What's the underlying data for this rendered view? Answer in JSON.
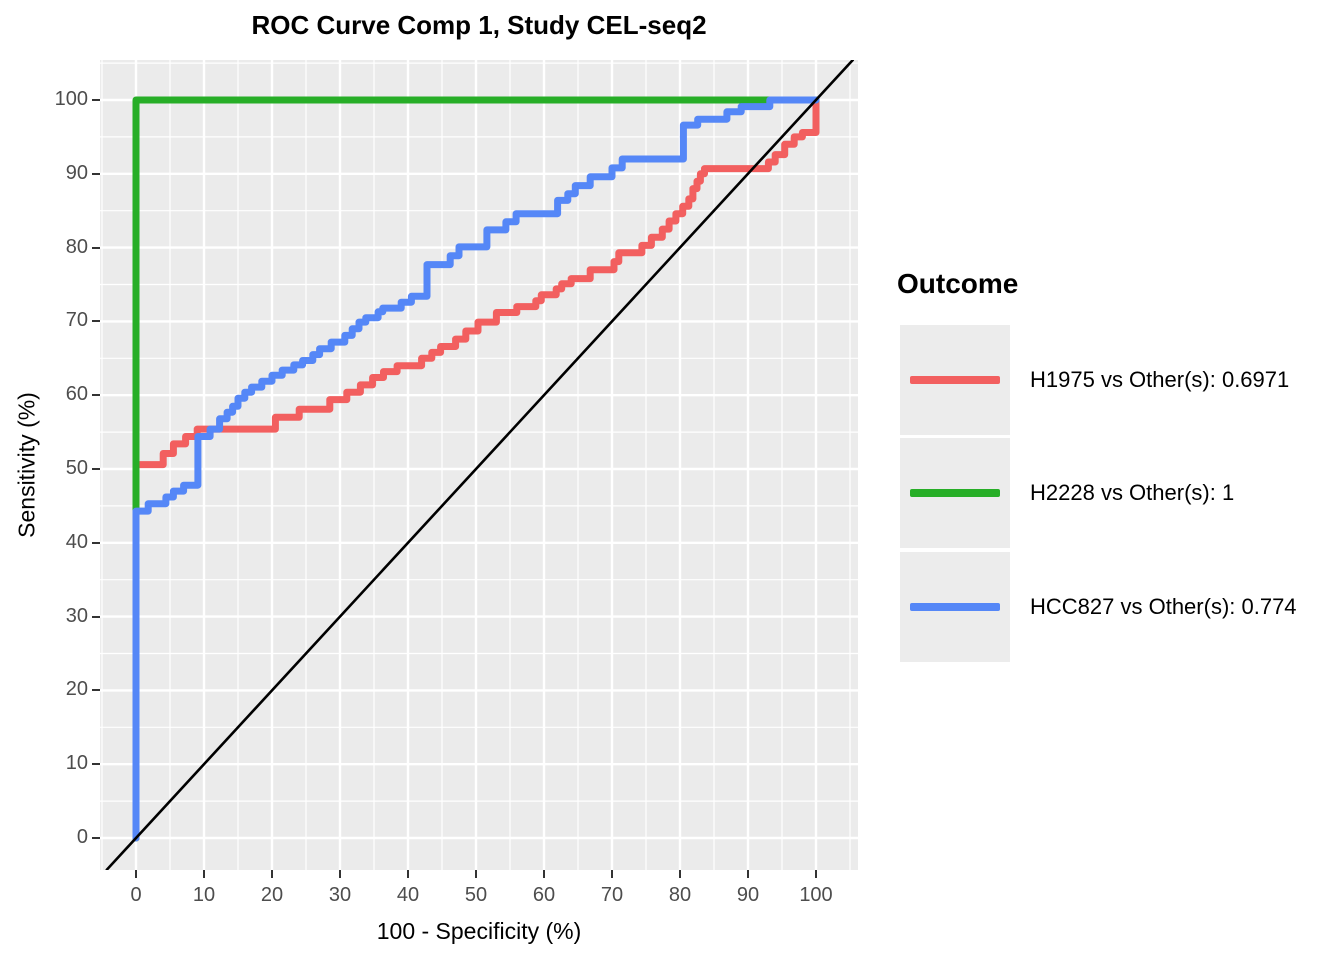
{
  "chart_data": {
    "type": "line",
    "subtype": "roc-step-curves",
    "title": "ROC Curve Comp 1, Study CEL-seq2",
    "xlabel": "100 - Specificity (%)",
    "ylabel": "Sensitivity (%)",
    "xlim": [
      -5.3,
      105.5
    ],
    "ylim": [
      -4.3,
      105.4
    ],
    "x_ticks": [
      0,
      10,
      20,
      30,
      40,
      50,
      60,
      70,
      80,
      90,
      100
    ],
    "y_ticks": [
      0,
      10,
      20,
      30,
      40,
      50,
      60,
      70,
      80,
      90,
      100
    ],
    "x_minor": [
      -5,
      5,
      15,
      25,
      35,
      45,
      55,
      65,
      75,
      85,
      95,
      105
    ],
    "y_minor": [
      5,
      15,
      25,
      35,
      45,
      55,
      65,
      75,
      85,
      95,
      105
    ],
    "grid": "on",
    "panel_bg": "#EBEBEB",
    "grid_color": "#FFFFFF",
    "legend_title": "Outcome",
    "legend_position": "right",
    "series": [
      {
        "name": "H1975",
        "label": "H1975 vs Other(s): 0.6971",
        "auc": 0.6971,
        "color": "#F25F5F",
        "points": [
          [
            0,
            0
          ],
          [
            0,
            50.6
          ],
          [
            4,
            50.6
          ],
          [
            4,
            52.1
          ],
          [
            5.5,
            52.1
          ],
          [
            5.5,
            53.4
          ],
          [
            7.3,
            53.4
          ],
          [
            7.3,
            54.4
          ],
          [
            9,
            54.4
          ],
          [
            9,
            55.4
          ],
          [
            20.5,
            55.4
          ],
          [
            20.5,
            57
          ],
          [
            24,
            57
          ],
          [
            24,
            58.1
          ],
          [
            28.5,
            58.1
          ],
          [
            28.5,
            59.4
          ],
          [
            31,
            59.4
          ],
          [
            31,
            60.4
          ],
          [
            33,
            60.4
          ],
          [
            33,
            61.4
          ],
          [
            34.8,
            61.4
          ],
          [
            34.8,
            62.4
          ],
          [
            36.4,
            62.4
          ],
          [
            36.4,
            63.2
          ],
          [
            38.4,
            63.2
          ],
          [
            38.4,
            64
          ],
          [
            42,
            64
          ],
          [
            42,
            65
          ],
          [
            43.5,
            65
          ],
          [
            43.5,
            65.8
          ],
          [
            44.8,
            65.8
          ],
          [
            44.8,
            66.6
          ],
          [
            47,
            66.6
          ],
          [
            47,
            67.6
          ],
          [
            48.5,
            67.6
          ],
          [
            48.5,
            68.7
          ],
          [
            50.3,
            68.7
          ],
          [
            50.3,
            69.9
          ],
          [
            53,
            69.9
          ],
          [
            53,
            71.2
          ],
          [
            56,
            71.2
          ],
          [
            56,
            72
          ],
          [
            58.8,
            72
          ],
          [
            58.8,
            72.8
          ],
          [
            59.6,
            72.8
          ],
          [
            59.6,
            73.6
          ],
          [
            61.8,
            73.6
          ],
          [
            61.8,
            74.4
          ],
          [
            62.6,
            74.4
          ],
          [
            62.6,
            75.1
          ],
          [
            64,
            75.1
          ],
          [
            64,
            75.8
          ],
          [
            66.8,
            75.8
          ],
          [
            66.8,
            77
          ],
          [
            70.3,
            77
          ],
          [
            70.3,
            78.1
          ],
          [
            71,
            78.1
          ],
          [
            71,
            79.3
          ],
          [
            74.4,
            79.3
          ],
          [
            74.4,
            80.3
          ],
          [
            75.8,
            80.3
          ],
          [
            75.8,
            81.4
          ],
          [
            77.4,
            81.4
          ],
          [
            77.4,
            82.5
          ],
          [
            78.4,
            82.5
          ],
          [
            78.4,
            83.6
          ],
          [
            79.4,
            83.6
          ],
          [
            79.4,
            84.6
          ],
          [
            80.4,
            84.6
          ],
          [
            80.4,
            85.6
          ],
          [
            81.3,
            85.6
          ],
          [
            81.3,
            86.6
          ],
          [
            81.9,
            86.6
          ],
          [
            81.9,
            88
          ],
          [
            82.5,
            88
          ],
          [
            82.5,
            89
          ],
          [
            83,
            89
          ],
          [
            83,
            90
          ],
          [
            83.6,
            90
          ],
          [
            83.6,
            90.7
          ],
          [
            93,
            90.7
          ],
          [
            93,
            91.6
          ],
          [
            94,
            91.6
          ],
          [
            94,
            92.6
          ],
          [
            95.4,
            92.6
          ],
          [
            95.4,
            94
          ],
          [
            96.8,
            94
          ],
          [
            96.8,
            95
          ],
          [
            98,
            95
          ],
          [
            98,
            95.6
          ],
          [
            100,
            95.6
          ],
          [
            100,
            100
          ]
        ]
      },
      {
        "name": "H2228",
        "label": "H2228 vs Other(s): 1",
        "auc": 1,
        "color": "#27AE27",
        "points": [
          [
            0,
            0
          ],
          [
            0,
            100
          ],
          [
            100,
            100
          ]
        ]
      },
      {
        "name": "HCC827",
        "label": "HCC827 vs Other(s): 0.774",
        "auc": 0.774,
        "color": "#5587F7",
        "points": [
          [
            0,
            0
          ],
          [
            0,
            44.3
          ],
          [
            1.8,
            44.3
          ],
          [
            1.8,
            45.3
          ],
          [
            4.4,
            45.3
          ],
          [
            4.4,
            46.2
          ],
          [
            5.5,
            46.2
          ],
          [
            5.5,
            47
          ],
          [
            7,
            47
          ],
          [
            7,
            47.8
          ],
          [
            9.1,
            47.8
          ],
          [
            9.1,
            54.4
          ],
          [
            10.9,
            54.4
          ],
          [
            10.9,
            55.4
          ],
          [
            12.3,
            55.4
          ],
          [
            12.3,
            56.8
          ],
          [
            13.4,
            56.8
          ],
          [
            13.4,
            57.7
          ],
          [
            14.2,
            57.7
          ],
          [
            14.2,
            58.5
          ],
          [
            15,
            58.5
          ],
          [
            15,
            59.6
          ],
          [
            16,
            59.6
          ],
          [
            16,
            60.4
          ],
          [
            17,
            60.4
          ],
          [
            17,
            61.1
          ],
          [
            18.5,
            61.1
          ],
          [
            18.5,
            61.9
          ],
          [
            20,
            61.9
          ],
          [
            20,
            62.7
          ],
          [
            21.5,
            62.7
          ],
          [
            21.5,
            63.4
          ],
          [
            23.2,
            63.4
          ],
          [
            23.2,
            64.1
          ],
          [
            24.5,
            64.1
          ],
          [
            24.5,
            64.7
          ],
          [
            26,
            64.7
          ],
          [
            26,
            65.5
          ],
          [
            27,
            65.5
          ],
          [
            27,
            66.3
          ],
          [
            28.7,
            66.3
          ],
          [
            28.7,
            67.2
          ],
          [
            30.7,
            67.2
          ],
          [
            30.7,
            68.1
          ],
          [
            31.8,
            68.1
          ],
          [
            31.8,
            69
          ],
          [
            32.8,
            69
          ],
          [
            32.8,
            69.9
          ],
          [
            33.8,
            69.9
          ],
          [
            33.8,
            70.5
          ],
          [
            35.6,
            70.5
          ],
          [
            35.6,
            71.3
          ],
          [
            36.3,
            71.3
          ],
          [
            36.3,
            71.8
          ],
          [
            39,
            71.8
          ],
          [
            39,
            72.6
          ],
          [
            40.5,
            72.6
          ],
          [
            40.5,
            73.4
          ],
          [
            42.8,
            73.4
          ],
          [
            42.8,
            77.7
          ],
          [
            46.2,
            77.7
          ],
          [
            46.2,
            78.9
          ],
          [
            47.5,
            78.9
          ],
          [
            47.5,
            80.1
          ],
          [
            51.6,
            80.1
          ],
          [
            51.6,
            82.4
          ],
          [
            54.4,
            82.4
          ],
          [
            54.4,
            83.5
          ],
          [
            55.9,
            83.5
          ],
          [
            55.9,
            84.6
          ],
          [
            62,
            84.6
          ],
          [
            62,
            86.4
          ],
          [
            63.5,
            86.4
          ],
          [
            63.5,
            87.3
          ],
          [
            64.6,
            87.3
          ],
          [
            64.6,
            88.4
          ],
          [
            66.8,
            88.4
          ],
          [
            66.8,
            89.6
          ],
          [
            70,
            89.6
          ],
          [
            70,
            90.8
          ],
          [
            71.5,
            90.8
          ],
          [
            71.5,
            92
          ],
          [
            80.5,
            92
          ],
          [
            80.5,
            96.6
          ],
          [
            82.6,
            96.6
          ],
          [
            82.6,
            97.4
          ],
          [
            86.9,
            97.4
          ],
          [
            86.9,
            98.4
          ],
          [
            89,
            98.4
          ],
          [
            89,
            99.1
          ],
          [
            93.2,
            99.1
          ],
          [
            93.2,
            100
          ],
          [
            100,
            100
          ]
        ]
      }
    ],
    "reference_line": {
      "name": "chance-diagonal",
      "color": "#000000",
      "points": [
        [
          -4.3,
          -4.3
        ],
        [
          105.4,
          105.4
        ]
      ]
    }
  }
}
